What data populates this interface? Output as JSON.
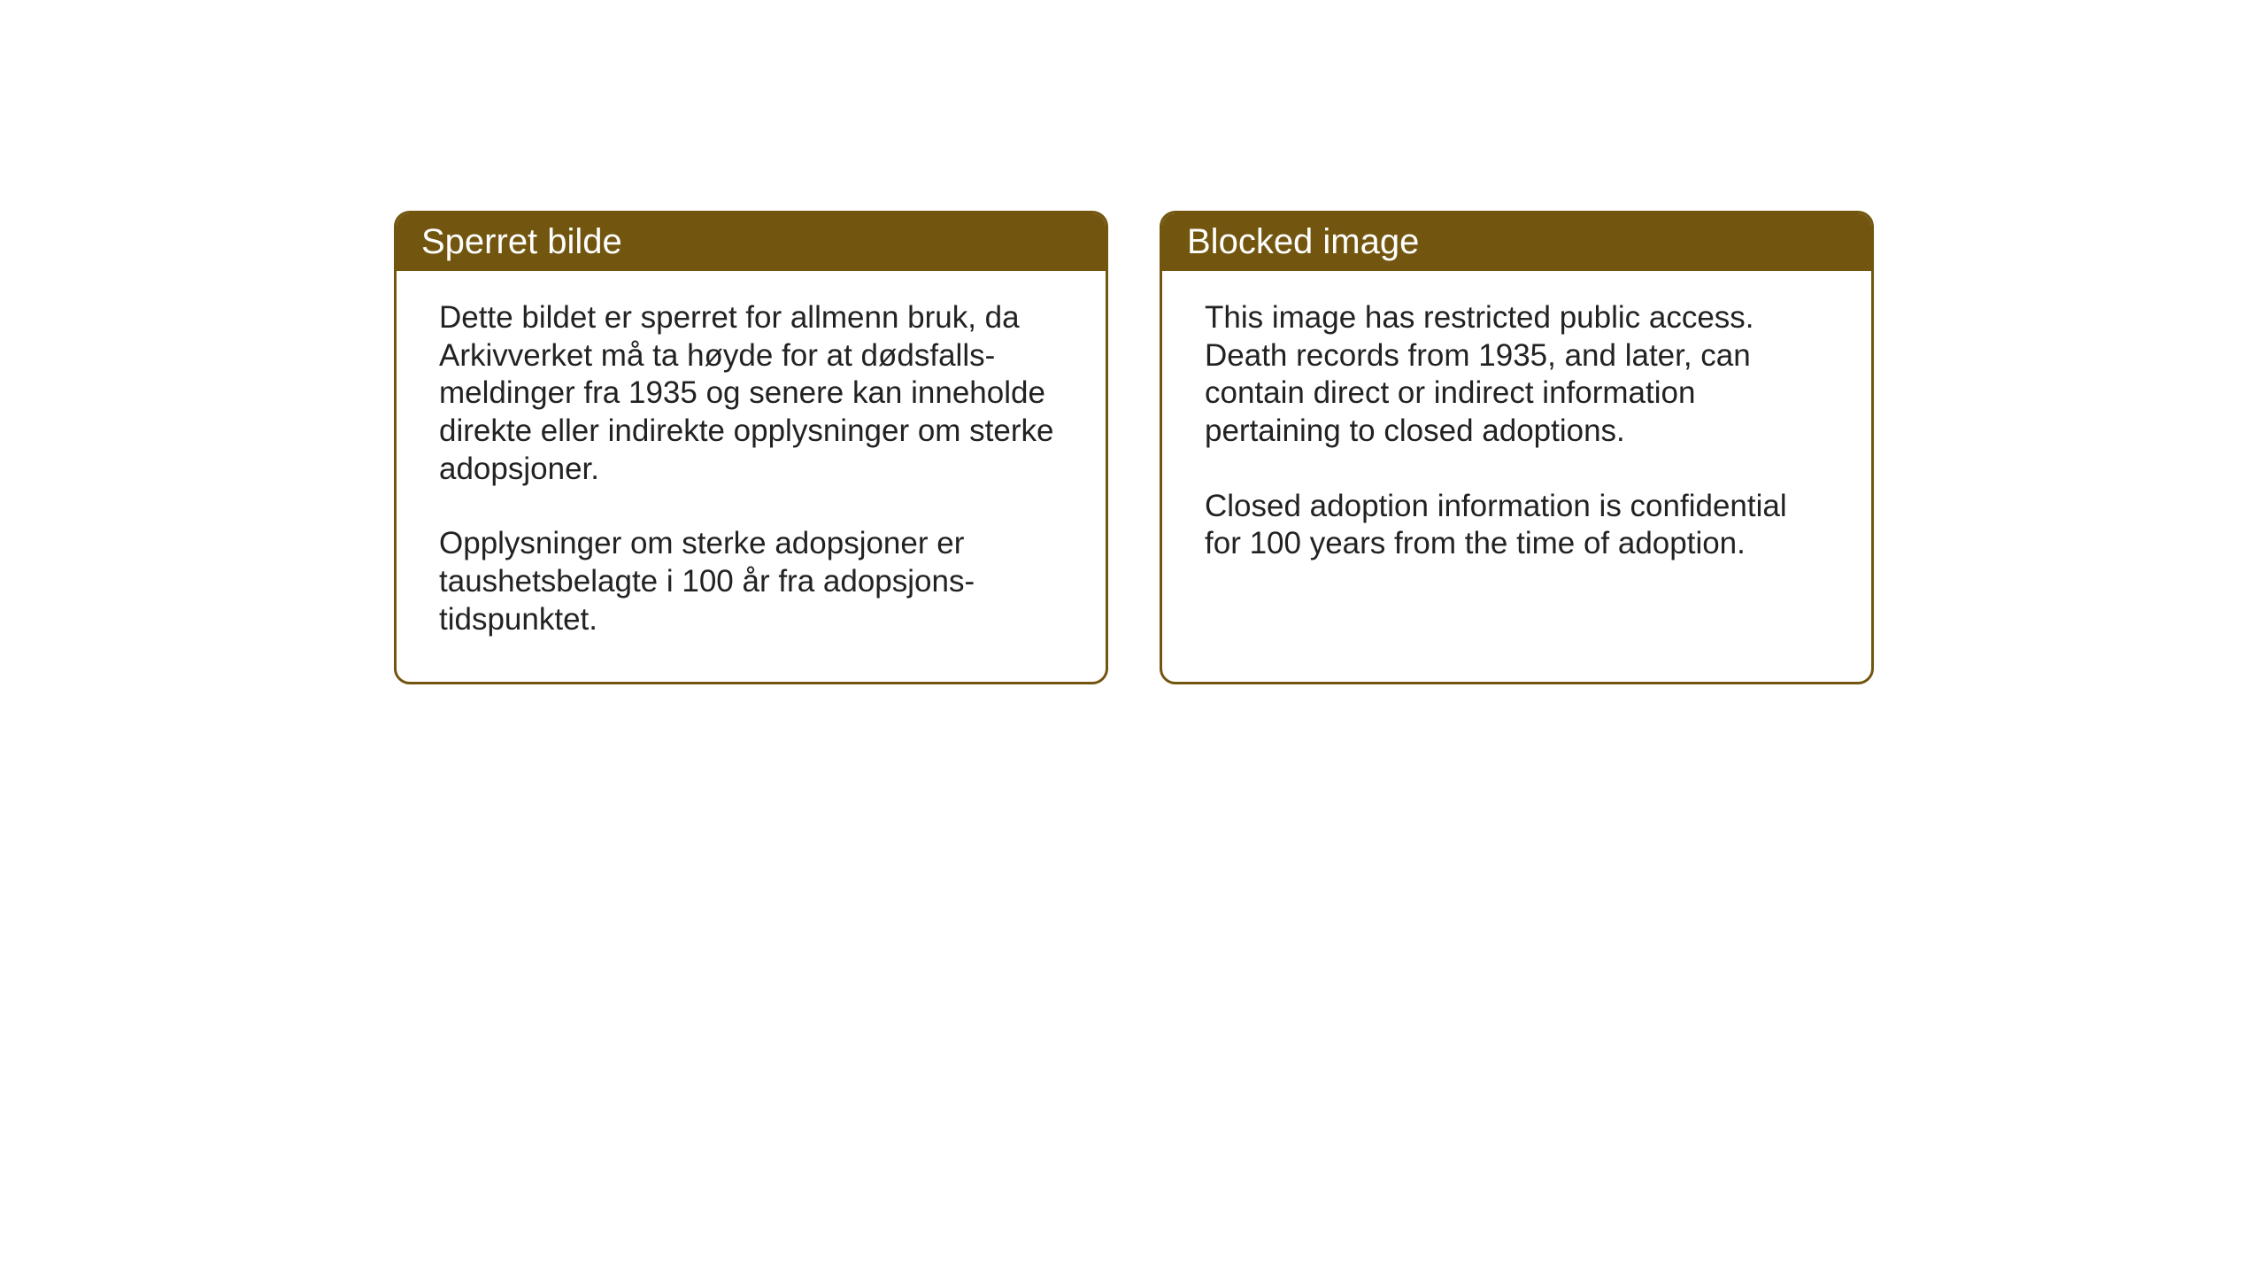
{
  "layout": {
    "background_color": "#ffffff",
    "card_border_color": "#72560f",
    "header_background_color": "#72560f",
    "header_text_color": "#ffffff",
    "body_text_color": "#222222",
    "border_radius": 18,
    "border_width": 3,
    "header_fontsize": 40,
    "body_fontsize": 35
  },
  "cards": {
    "norwegian": {
      "title": "Sperret bilde",
      "paragraph1": "Dette bildet er sperret for allmenn bruk, da Arkivverket må ta høyde for at dødsfalls-meldinger fra 1935 og senere kan inneholde direkte eller indirekte opplysninger om sterke adopsjoner.",
      "paragraph2": "Opplysninger om sterke adopsjoner er taushetsbelagte i 100 år fra adopsjons-tidspunktet."
    },
    "english": {
      "title": "Blocked image",
      "paragraph1": "This image has restricted public access. Death records from 1935, and later, can contain direct or indirect information pertaining to closed adoptions.",
      "paragraph2": "Closed adoption information is confidential for 100 years from the time of adoption."
    }
  }
}
